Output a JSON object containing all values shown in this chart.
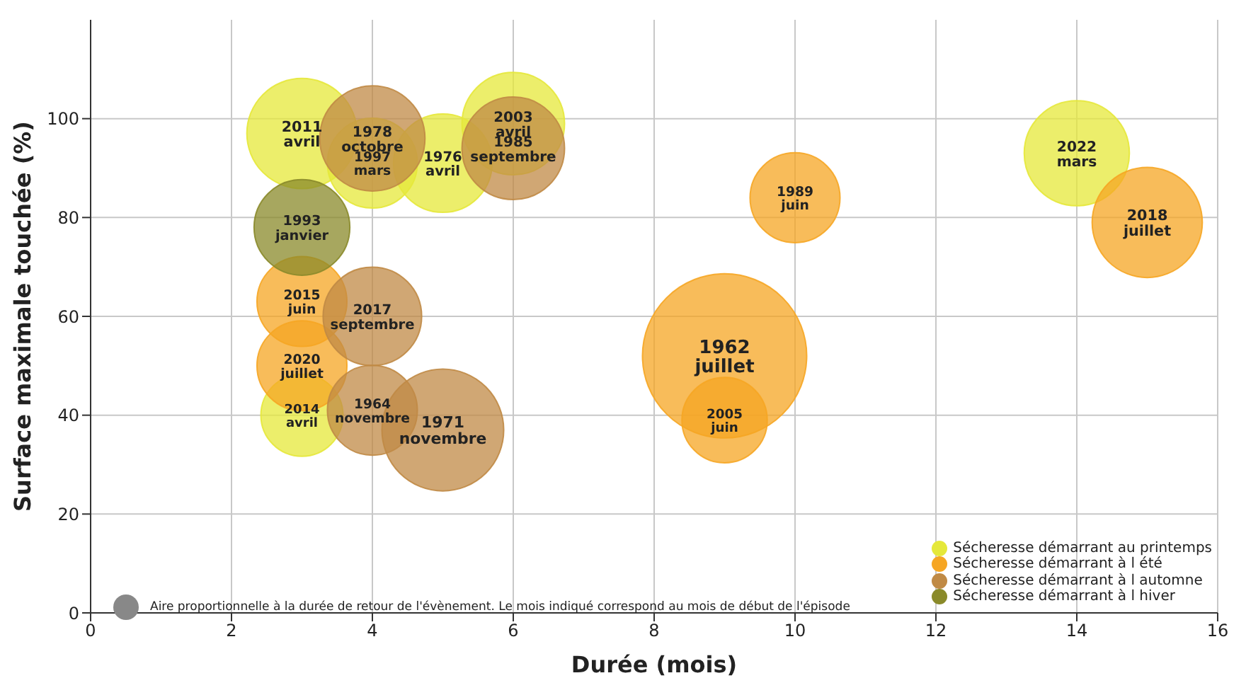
{
  "chart_data": {
    "type": "bubble",
    "xlabel": "Durée (mois)",
    "ylabel": "Surface maximale touchée (%)",
    "xlim": [
      0,
      16
    ],
    "xticks": [
      0,
      2,
      4,
      6,
      8,
      10,
      12,
      14,
      16
    ],
    "ylim": [
      0,
      120
    ],
    "yticks": [
      0,
      20,
      40,
      60,
      80,
      100
    ],
    "grid": true,
    "legend": "bottom right",
    "annotations": [
      "Aire proportionnelle à la durée de retour de l'évènement. Le mois indiqué correspond au mois de début de l'épisode",
      {
        "text": "2011 avril",
        "x": 3,
        "y": 97
      },
      {
        "text": "1978 octobre",
        "x": 4,
        "y": 96
      },
      {
        "text": "1997 mars",
        "x": 4,
        "y": 91
      },
      {
        "text": "1976 avril",
        "x": 5,
        "y": 91
      },
      {
        "text": "1985 septembre",
        "x": 6,
        "y": 94
      },
      {
        "text": "2003 avril",
        "x": 6,
        "y": 99
      },
      {
        "text": "2022 mars",
        "x": 14,
        "y": 93
      },
      {
        "text": "1993 janvier",
        "x": 3,
        "y": 78
      },
      {
        "text": "2015 juin",
        "x": 3,
        "y": 63
      },
      {
        "text": "2017 septembre",
        "x": 4,
        "y": 60
      },
      {
        "text": "2020 juillet",
        "x": 3,
        "y": 50
      },
      {
        "text": "2014 avril",
        "x": 3,
        "y": 40
      },
      {
        "text": "1964 novembre",
        "x": 4,
        "y": 41
      },
      {
        "text": "1971 novembre",
        "x": 5,
        "y": 37
      },
      {
        "text": "1989 juin",
        "x": 10,
        "y": 84
      },
      {
        "text": "2018 juillet",
        "x": 15,
        "y": 79
      },
      {
        "text": "1962 juillet",
        "x": 9,
        "y": 52
      },
      {
        "text": "2005 juin",
        "x": 9,
        "y": 39
      }
    ],
    "series": [
      {
        "name": "Sécheresse démarrant au printemps",
        "color": "#e5e83a",
        "x": [
          3,
          4,
          5,
          6,
          3,
          14
        ],
        "values": [
          97,
          91,
          91,
          99,
          40,
          93
        ],
        "sizes": [
          0.45,
          0.3,
          0.36,
          0.39,
          0.25,
          0.41
        ]
      },
      {
        "name": "Sécheresse démarrant à l été",
        "color": "#f6a623",
        "x": [
          3,
          3,
          10,
          15,
          9,
          9
        ],
        "values": [
          63,
          50,
          84,
          79,
          52,
          39
        ],
        "sizes": [
          0.3,
          0.3,
          0.3,
          0.45,
          1,
          0.27
        ]
      },
      {
        "name": "Sécheresse démarrant à l automne",
        "color": "#c08a45",
        "x": [
          4,
          6,
          4,
          4,
          5
        ],
        "values": [
          96,
          94,
          60,
          41,
          37
        ],
        "sizes": [
          0.41,
          0.39,
          0.36,
          0.3,
          0.55
        ]
      },
      {
        "name": "Sécheresse démarrant à l hiver",
        "color": "#8a8a2a",
        "x": [
          3
        ],
        "values": [
          78
        ],
        "sizes": [
          0.34
        ]
      }
    ]
  }
}
